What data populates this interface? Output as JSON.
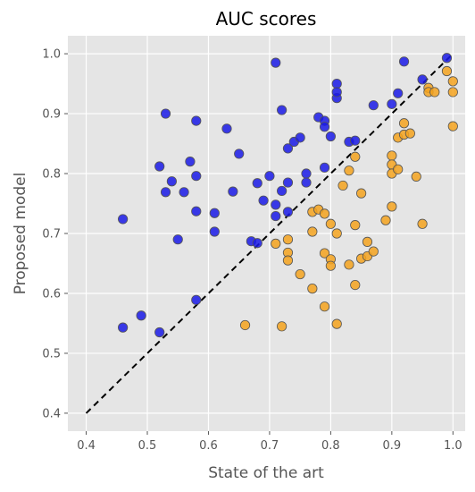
{
  "chart_data": {
    "type": "scatter",
    "title": "AUC scores",
    "xlabel": "State of the art",
    "ylabel": "Proposed model",
    "xlim": [
      0.37,
      1.02
    ],
    "ylim": [
      0.37,
      1.03
    ],
    "xticks": [
      "0.4",
      "0.5",
      "0.6",
      "0.7",
      "0.8",
      "0.9",
      "1.0"
    ],
    "yticks": [
      "0.4",
      "0.5",
      "0.6",
      "0.7",
      "0.8",
      "0.9",
      "1.0"
    ],
    "grid": true,
    "legend": "none",
    "reference_line": {
      "style": "dashed",
      "color": "#000000",
      "from": [
        0.4,
        0.4
      ],
      "to": [
        1.0,
        1.0
      ]
    },
    "series": [
      {
        "color": "#1a1ae6",
        "points": [
          [
            0.46,
            0.724
          ],
          [
            0.46,
            0.543
          ],
          [
            0.49,
            0.563
          ],
          [
            0.52,
            0.535
          ],
          [
            0.52,
            0.812
          ],
          [
            0.53,
            0.9
          ],
          [
            0.53,
            0.769
          ],
          [
            0.54,
            0.787
          ],
          [
            0.55,
            0.69
          ],
          [
            0.56,
            0.769
          ],
          [
            0.57,
            0.82
          ],
          [
            0.58,
            0.888
          ],
          [
            0.58,
            0.796
          ],
          [
            0.58,
            0.737
          ],
          [
            0.58,
            0.589
          ],
          [
            0.61,
            0.734
          ],
          [
            0.61,
            0.703
          ],
          [
            0.63,
            0.875
          ],
          [
            0.64,
            0.77
          ],
          [
            0.65,
            0.833
          ],
          [
            0.67,
            0.687
          ],
          [
            0.68,
            0.684
          ],
          [
            0.68,
            0.784
          ],
          [
            0.69,
            0.755
          ],
          [
            0.7,
            0.796
          ],
          [
            0.71,
            0.985
          ],
          [
            0.71,
            0.748
          ],
          [
            0.71,
            0.729
          ],
          [
            0.72,
            0.906
          ],
          [
            0.72,
            0.771
          ],
          [
            0.73,
            0.785
          ],
          [
            0.73,
            0.736
          ],
          [
            0.73,
            0.842
          ],
          [
            0.74,
            0.853
          ],
          [
            0.75,
            0.86
          ],
          [
            0.76,
            0.8
          ],
          [
            0.76,
            0.785
          ],
          [
            0.78,
            0.894
          ],
          [
            0.79,
            0.888
          ],
          [
            0.79,
            0.878
          ],
          [
            0.79,
            0.81
          ],
          [
            0.8,
            0.862
          ],
          [
            0.81,
            0.95
          ],
          [
            0.81,
            0.926
          ],
          [
            0.81,
            0.936
          ],
          [
            0.83,
            0.853
          ],
          [
            0.84,
            0.855
          ],
          [
            0.87,
            0.914
          ],
          [
            0.9,
            0.916
          ],
          [
            0.91,
            0.934
          ],
          [
            0.92,
            0.987
          ],
          [
            0.95,
            0.957
          ],
          [
            0.99,
            0.993
          ]
        ]
      },
      {
        "color": "#f5a31f",
        "points": [
          [
            0.66,
            0.547
          ],
          [
            0.71,
            0.683
          ],
          [
            0.72,
            0.545
          ],
          [
            0.73,
            0.69
          ],
          [
            0.73,
            0.668
          ],
          [
            0.73,
            0.655
          ],
          [
            0.75,
            0.632
          ],
          [
            0.77,
            0.608
          ],
          [
            0.77,
            0.736
          ],
          [
            0.77,
            0.703
          ],
          [
            0.78,
            0.74
          ],
          [
            0.79,
            0.733
          ],
          [
            0.79,
            0.667
          ],
          [
            0.79,
            0.578
          ],
          [
            0.8,
            0.716
          ],
          [
            0.8,
            0.657
          ],
          [
            0.8,
            0.646
          ],
          [
            0.81,
            0.7
          ],
          [
            0.81,
            0.549
          ],
          [
            0.82,
            0.78
          ],
          [
            0.83,
            0.805
          ],
          [
            0.83,
            0.648
          ],
          [
            0.84,
            0.828
          ],
          [
            0.84,
            0.714
          ],
          [
            0.84,
            0.614
          ],
          [
            0.85,
            0.767
          ],
          [
            0.85,
            0.658
          ],
          [
            0.86,
            0.686
          ],
          [
            0.86,
            0.662
          ],
          [
            0.87,
            0.67
          ],
          [
            0.89,
            0.722
          ],
          [
            0.9,
            0.83
          ],
          [
            0.9,
            0.815
          ],
          [
            0.9,
            0.8
          ],
          [
            0.9,
            0.745
          ],
          [
            0.91,
            0.86
          ],
          [
            0.91,
            0.807
          ],
          [
            0.92,
            0.884
          ],
          [
            0.92,
            0.865
          ],
          [
            0.93,
            0.867
          ],
          [
            0.94,
            0.795
          ],
          [
            0.95,
            0.716
          ],
          [
            0.96,
            0.943
          ],
          [
            0.96,
            0.936
          ],
          [
            0.97,
            0.936
          ],
          [
            0.99,
            0.971
          ],
          [
            1.0,
            0.954
          ],
          [
            1.0,
            0.936
          ],
          [
            1.0,
            0.879
          ]
        ]
      }
    ]
  }
}
